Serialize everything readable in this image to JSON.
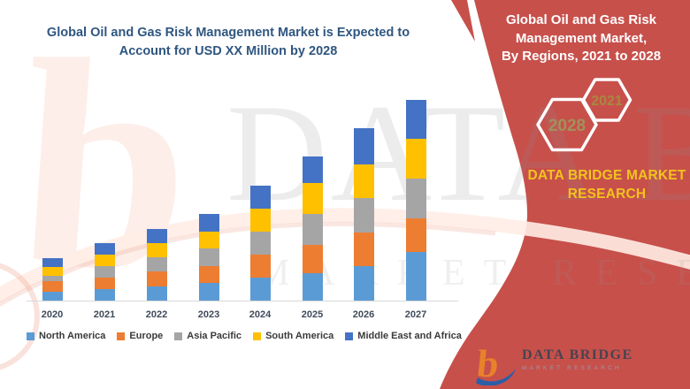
{
  "chart_title": {
    "line1": "Global Oil and Gas Risk Management Market is Expected to",
    "line2": "Account for USD XX Million by 2028",
    "color": "#2F5680"
  },
  "banner": {
    "bg_color": "#C7504B",
    "title_line1": "Global Oil and Gas Risk",
    "title_line2": "Management Market,",
    "title_line3": "By Regions, 2021 to 2028",
    "hex_back_year": "2028",
    "hex_front_year": "2021",
    "hex_back_year_color": "#A3915C",
    "hex_front_year_color": "#A8883E",
    "brand_line1": "DATA BRIDGE MARKET",
    "brand_line2": "RESEARCH",
    "brand_color": "#F2C31D"
  },
  "footer_logo": {
    "name": "DATA BRIDGE",
    "tagline": "MARKET RESEARCH"
  },
  "watermark": {
    "letter": "b",
    "text_primary": "DATA BRIDGE",
    "text_secondary": "MARKET RESEARCH"
  },
  "chart_data": {
    "type": "bar",
    "stacked": true,
    "title": "Global Oil and Gas Risk Management Market is Expected to Account for USD XX Million by 2028",
    "categories": [
      "2020",
      "2021",
      "2022",
      "2023",
      "2024",
      "2025",
      "2026",
      "2027"
    ],
    "series": [
      {
        "name": "North America",
        "color": "#5B9BD5",
        "values": [
          0.61,
          0.8,
          1.0,
          1.2,
          1.6,
          1.9,
          2.4,
          3.4
        ]
      },
      {
        "name": "Europe",
        "color": "#ED7D31",
        "values": [
          0.72,
          0.8,
          1.0,
          1.2,
          1.6,
          1.95,
          2.35,
          2.3
        ]
      },
      {
        "name": "Asia Pacific",
        "color": "#A5A5A5",
        "values": [
          0.41,
          0.8,
          1.0,
          1.2,
          1.6,
          2.15,
          2.35,
          2.75
        ]
      },
      {
        "name": "South America",
        "color": "#FFC000",
        "values": [
          0.61,
          0.8,
          1.0,
          1.2,
          1.6,
          2.15,
          2.35,
          2.8
        ]
      },
      {
        "name": "Middle East and Africa",
        "color": "#4472C4",
        "values": [
          0.61,
          0.8,
          1.0,
          1.2,
          1.6,
          1.85,
          2.5,
          2.7
        ]
      }
    ],
    "value_axis": "values masked as USD XX Million in source; units are relative index",
    "y_axis_visible": false,
    "gridlines": false,
    "legend_position": "bottom"
  }
}
